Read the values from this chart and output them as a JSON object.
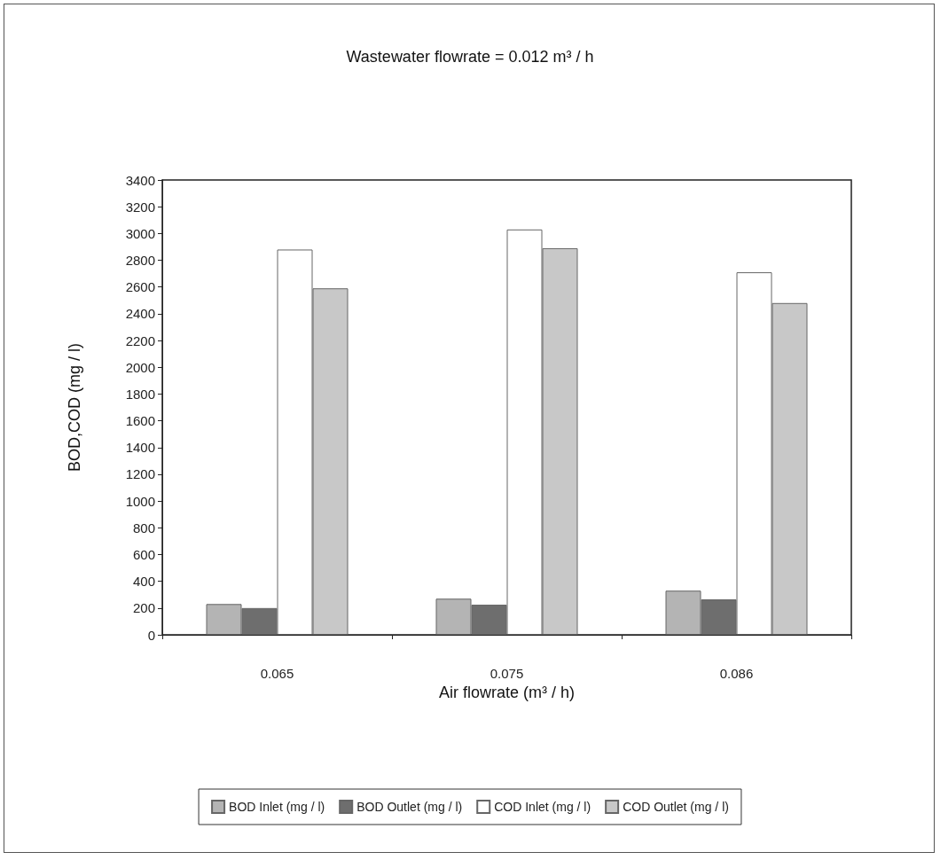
{
  "chart_data": {
    "type": "bar",
    "title": "Wastewater flowrate = 0.012 m³ / h",
    "xlabel": "Air flowrate (m³ / h)",
    "ylabel": "BOD,COD (mg / l)",
    "categories": [
      "0.065",
      "0.075",
      "0.086"
    ],
    "series": [
      {
        "name": "BOD Inlet (mg / l)",
        "color": "#b4b4b4",
        "values": [
          230,
          270,
          330
        ]
      },
      {
        "name": "BOD Outlet (mg / l)",
        "color": "#6e6e6e",
        "values": [
          200,
          225,
          265
        ]
      },
      {
        "name": "COD Inlet (mg / l)",
        "color": "#ffffff",
        "values": [
          2880,
          3030,
          2710
        ]
      },
      {
        "name": "COD Outlet (mg / l)",
        "color": "#c8c8c8",
        "values": [
          2590,
          2890,
          2480
        ]
      }
    ],
    "ylim": [
      0,
      3400
    ],
    "yticks": [
      0,
      200,
      400,
      600,
      800,
      1000,
      1200,
      1400,
      1600,
      1800,
      2000,
      2200,
      2400,
      2600,
      2800,
      3000,
      3200,
      3400
    ],
    "grid": false,
    "legend": "bottom"
  }
}
